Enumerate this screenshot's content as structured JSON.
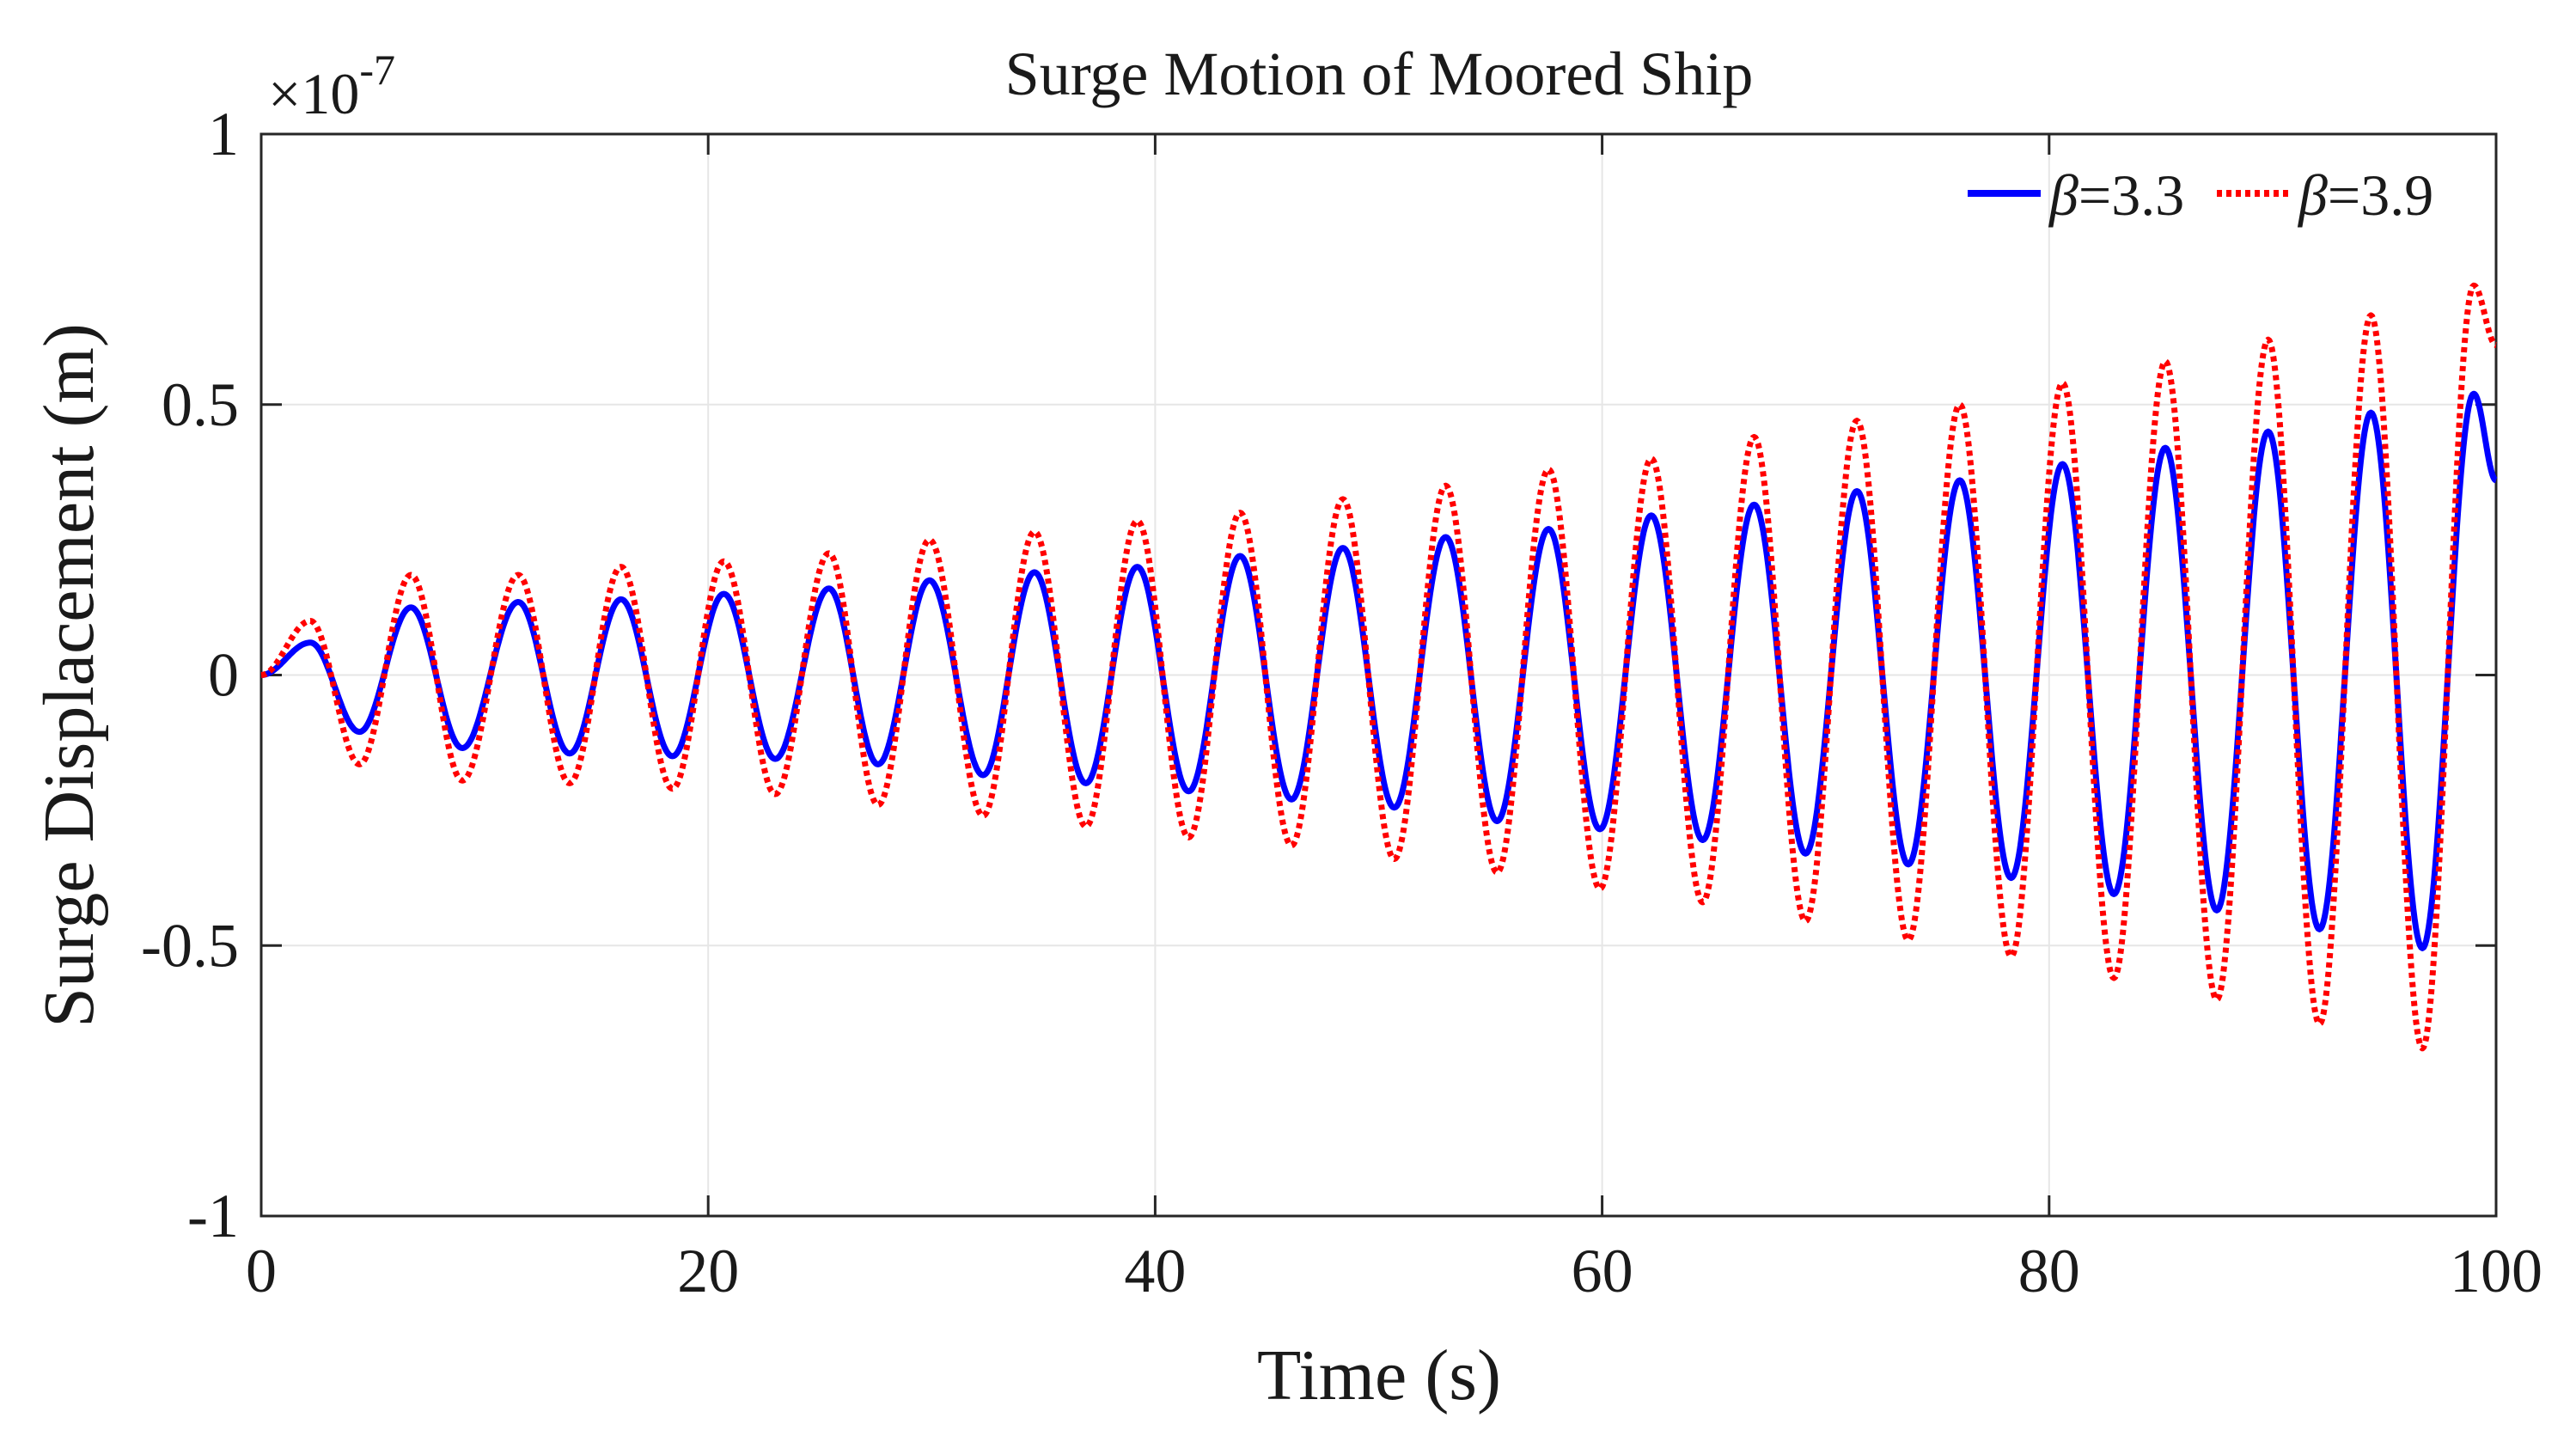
{
  "chart_data": {
    "type": "line",
    "title": "Surge Motion of Moored Ship",
    "xlabel": "Time (s)",
    "ylabel": "Surge Displacement (m)",
    "y_multiplier_label": "×10",
    "y_multiplier_exponent": "-7",
    "xlim": [
      0,
      100
    ],
    "ylim": [
      -1,
      1
    ],
    "x_ticks": [
      0,
      20,
      40,
      60,
      80,
      100
    ],
    "x_tick_labels": [
      "0",
      "20",
      "40",
      "60",
      "80",
      "100"
    ],
    "y_ticks": [
      -1,
      -0.5,
      0,
      0.5,
      1
    ],
    "y_tick_labels": [
      "-1",
      "-0.5",
      "0",
      "0.5",
      "1"
    ],
    "grid": true,
    "legend_position": "top-right",
    "period_s": 4.55,
    "series": [
      {
        "name": "β=3.3",
        "legend_symbol": "β",
        "legend_value": "=3.3",
        "color": "#0000ff",
        "style": "solid",
        "x": [
          0,
          2.2,
          4.4,
          6.7,
          9.0,
          11.5,
          13.8,
          16.1,
          18.4,
          20.7,
          23.0,
          25.4,
          27.6,
          29.9,
          32.3,
          34.6,
          36.9,
          39.2,
          41.5,
          43.8,
          46.1,
          48.4,
          50.7,
          53.0,
          55.3,
          57.6,
          59.9,
          62.2,
          64.5,
          66.8,
          69.1,
          71.4,
          73.7,
          76.0,
          78.3,
          80.6,
          82.9,
          85.2,
          87.5,
          89.8,
          92.1,
          94.4,
          96.7,
          99.0,
          100
        ],
        "y": [
          0,
          0.06,
          -0.105,
          0.125,
          -0.135,
          0.135,
          -0.145,
          0.14,
          -0.15,
          0.15,
          -0.155,
          0.16,
          -0.165,
          0.175,
          -0.185,
          0.19,
          -0.2,
          0.2,
          -0.215,
          0.22,
          -0.23,
          0.235,
          -0.245,
          0.255,
          -0.27,
          0.27,
          -0.285,
          0.295,
          -0.305,
          0.315,
          -0.33,
          0.34,
          -0.35,
          0.36,
          -0.375,
          0.39,
          -0.405,
          0.42,
          -0.435,
          0.45,
          -0.47,
          0.485,
          -0.505,
          0.52,
          0.36
        ]
      },
      {
        "name": "β=3.9",
        "legend_symbol": "β",
        "legend_value": "=3.9",
        "color": "#ff0000",
        "style": "dotted",
        "x": [
          0,
          2.2,
          4.4,
          6.7,
          9.0,
          11.5,
          13.8,
          16.1,
          18.4,
          20.7,
          23.0,
          25.4,
          27.6,
          29.9,
          32.3,
          34.6,
          36.9,
          39.2,
          41.5,
          43.8,
          46.1,
          48.4,
          50.7,
          53.0,
          55.3,
          57.6,
          59.9,
          62.2,
          64.5,
          66.8,
          69.1,
          71.4,
          73.7,
          76.0,
          78.3,
          80.6,
          82.9,
          85.2,
          87.5,
          89.8,
          92.1,
          94.4,
          96.7,
          99.0,
          100
        ],
        "y": [
          0,
          0.1,
          -0.165,
          0.185,
          -0.195,
          0.185,
          -0.2,
          0.2,
          -0.21,
          0.21,
          -0.22,
          0.225,
          -0.24,
          0.25,
          -0.26,
          0.265,
          -0.28,
          0.285,
          -0.3,
          0.3,
          -0.315,
          0.325,
          -0.34,
          0.35,
          -0.365,
          0.38,
          -0.395,
          0.4,
          -0.42,
          0.44,
          -0.455,
          0.47,
          -0.49,
          0.5,
          -0.52,
          0.54,
          -0.56,
          0.58,
          -0.6,
          0.62,
          -0.645,
          0.665,
          -0.69,
          0.72,
          0.61
        ]
      }
    ]
  }
}
